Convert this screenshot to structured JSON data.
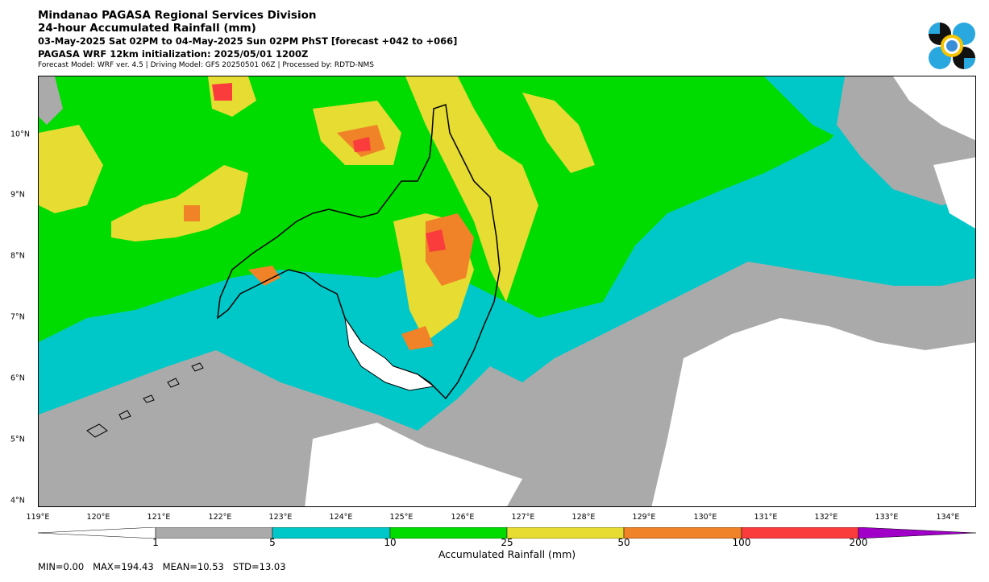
{
  "header": {
    "title": "Mindanao PAGASA Regional Services Division",
    "subtitle": "24-hour Accumulated Rainfall (mm)",
    "period": "03-May-2025 Sat 02PM to 04-May-2025 Sun 02PM PhST [forecast +042 to +066]",
    "init": "PAGASA WRF 12km initialization: 2025/05/01 1200Z",
    "model_info": "Forecast Model: WRF ver. 4.5 | Driving Model: GFS 20250501 06Z | Processed by: RDTD-NMS"
  },
  "logo": {
    "icon": "pagasa-logo-icon"
  },
  "map": {
    "lon_labels": [
      "119°E",
      "120°E",
      "121°E",
      "122°E",
      "123°E",
      "124°E",
      "125°E",
      "126°E",
      "127°E",
      "128°E",
      "129°E",
      "130°E",
      "131°E",
      "132°E",
      "133°E",
      "134°E"
    ],
    "lat_labels": [
      "10°N",
      "9°N",
      "8°N",
      "7°N",
      "6°N",
      "5°N",
      "4°N"
    ]
  },
  "colorbar": {
    "label": "Accumulated Rainfall (mm)",
    "ticks": [
      "1",
      "5",
      "10",
      "25",
      "50",
      "100",
      "200"
    ],
    "colors": {
      "lt1": "#ffffff",
      "1-5": "#aaaaaa",
      "5-10": "#00c8c8",
      "10-25": "#00dc00",
      "25-50": "#e6dc32",
      "50-100": "#f08228",
      "100-200": "#fa3c3c",
      "gt200": "#a000c8"
    }
  },
  "stats": "MIN=0.00   MAX=194.43   MEAN=10.53   STD=13.03"
}
